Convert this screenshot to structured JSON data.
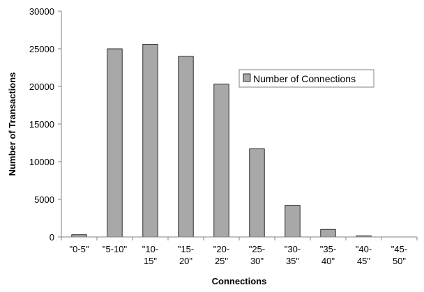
{
  "chart_data": {
    "type": "bar",
    "categories": [
      [
        "\"0-5\""
      ],
      [
        "\"5-10\""
      ],
      [
        "\"10-",
        "15\""
      ],
      [
        "\"15-",
        "20\""
      ],
      [
        "\"20-",
        "25\""
      ],
      [
        "\"25-",
        "30\""
      ],
      [
        "\"30-",
        "35\""
      ],
      [
        "\"35-",
        "40\""
      ],
      [
        "\"40-",
        "45\""
      ],
      [
        "\"45-",
        "50\""
      ]
    ],
    "series": [
      {
        "name": "Number of Connections",
        "values": [
          300,
          25000,
          25600,
          24000,
          20300,
          11700,
          4200,
          1000,
          150,
          0
        ]
      }
    ],
    "xlabel": "Connections",
    "ylabel": "Number of Transactions",
    "ylim": [
      0,
      30000
    ],
    "yticks": [
      0,
      5000,
      10000,
      15000,
      20000,
      25000,
      30000
    ],
    "grid": false,
    "legend_position": "right"
  },
  "colors": {
    "bar_fill": "#a8a8a8",
    "bar_stroke": "#000000",
    "axis": "#808080"
  }
}
